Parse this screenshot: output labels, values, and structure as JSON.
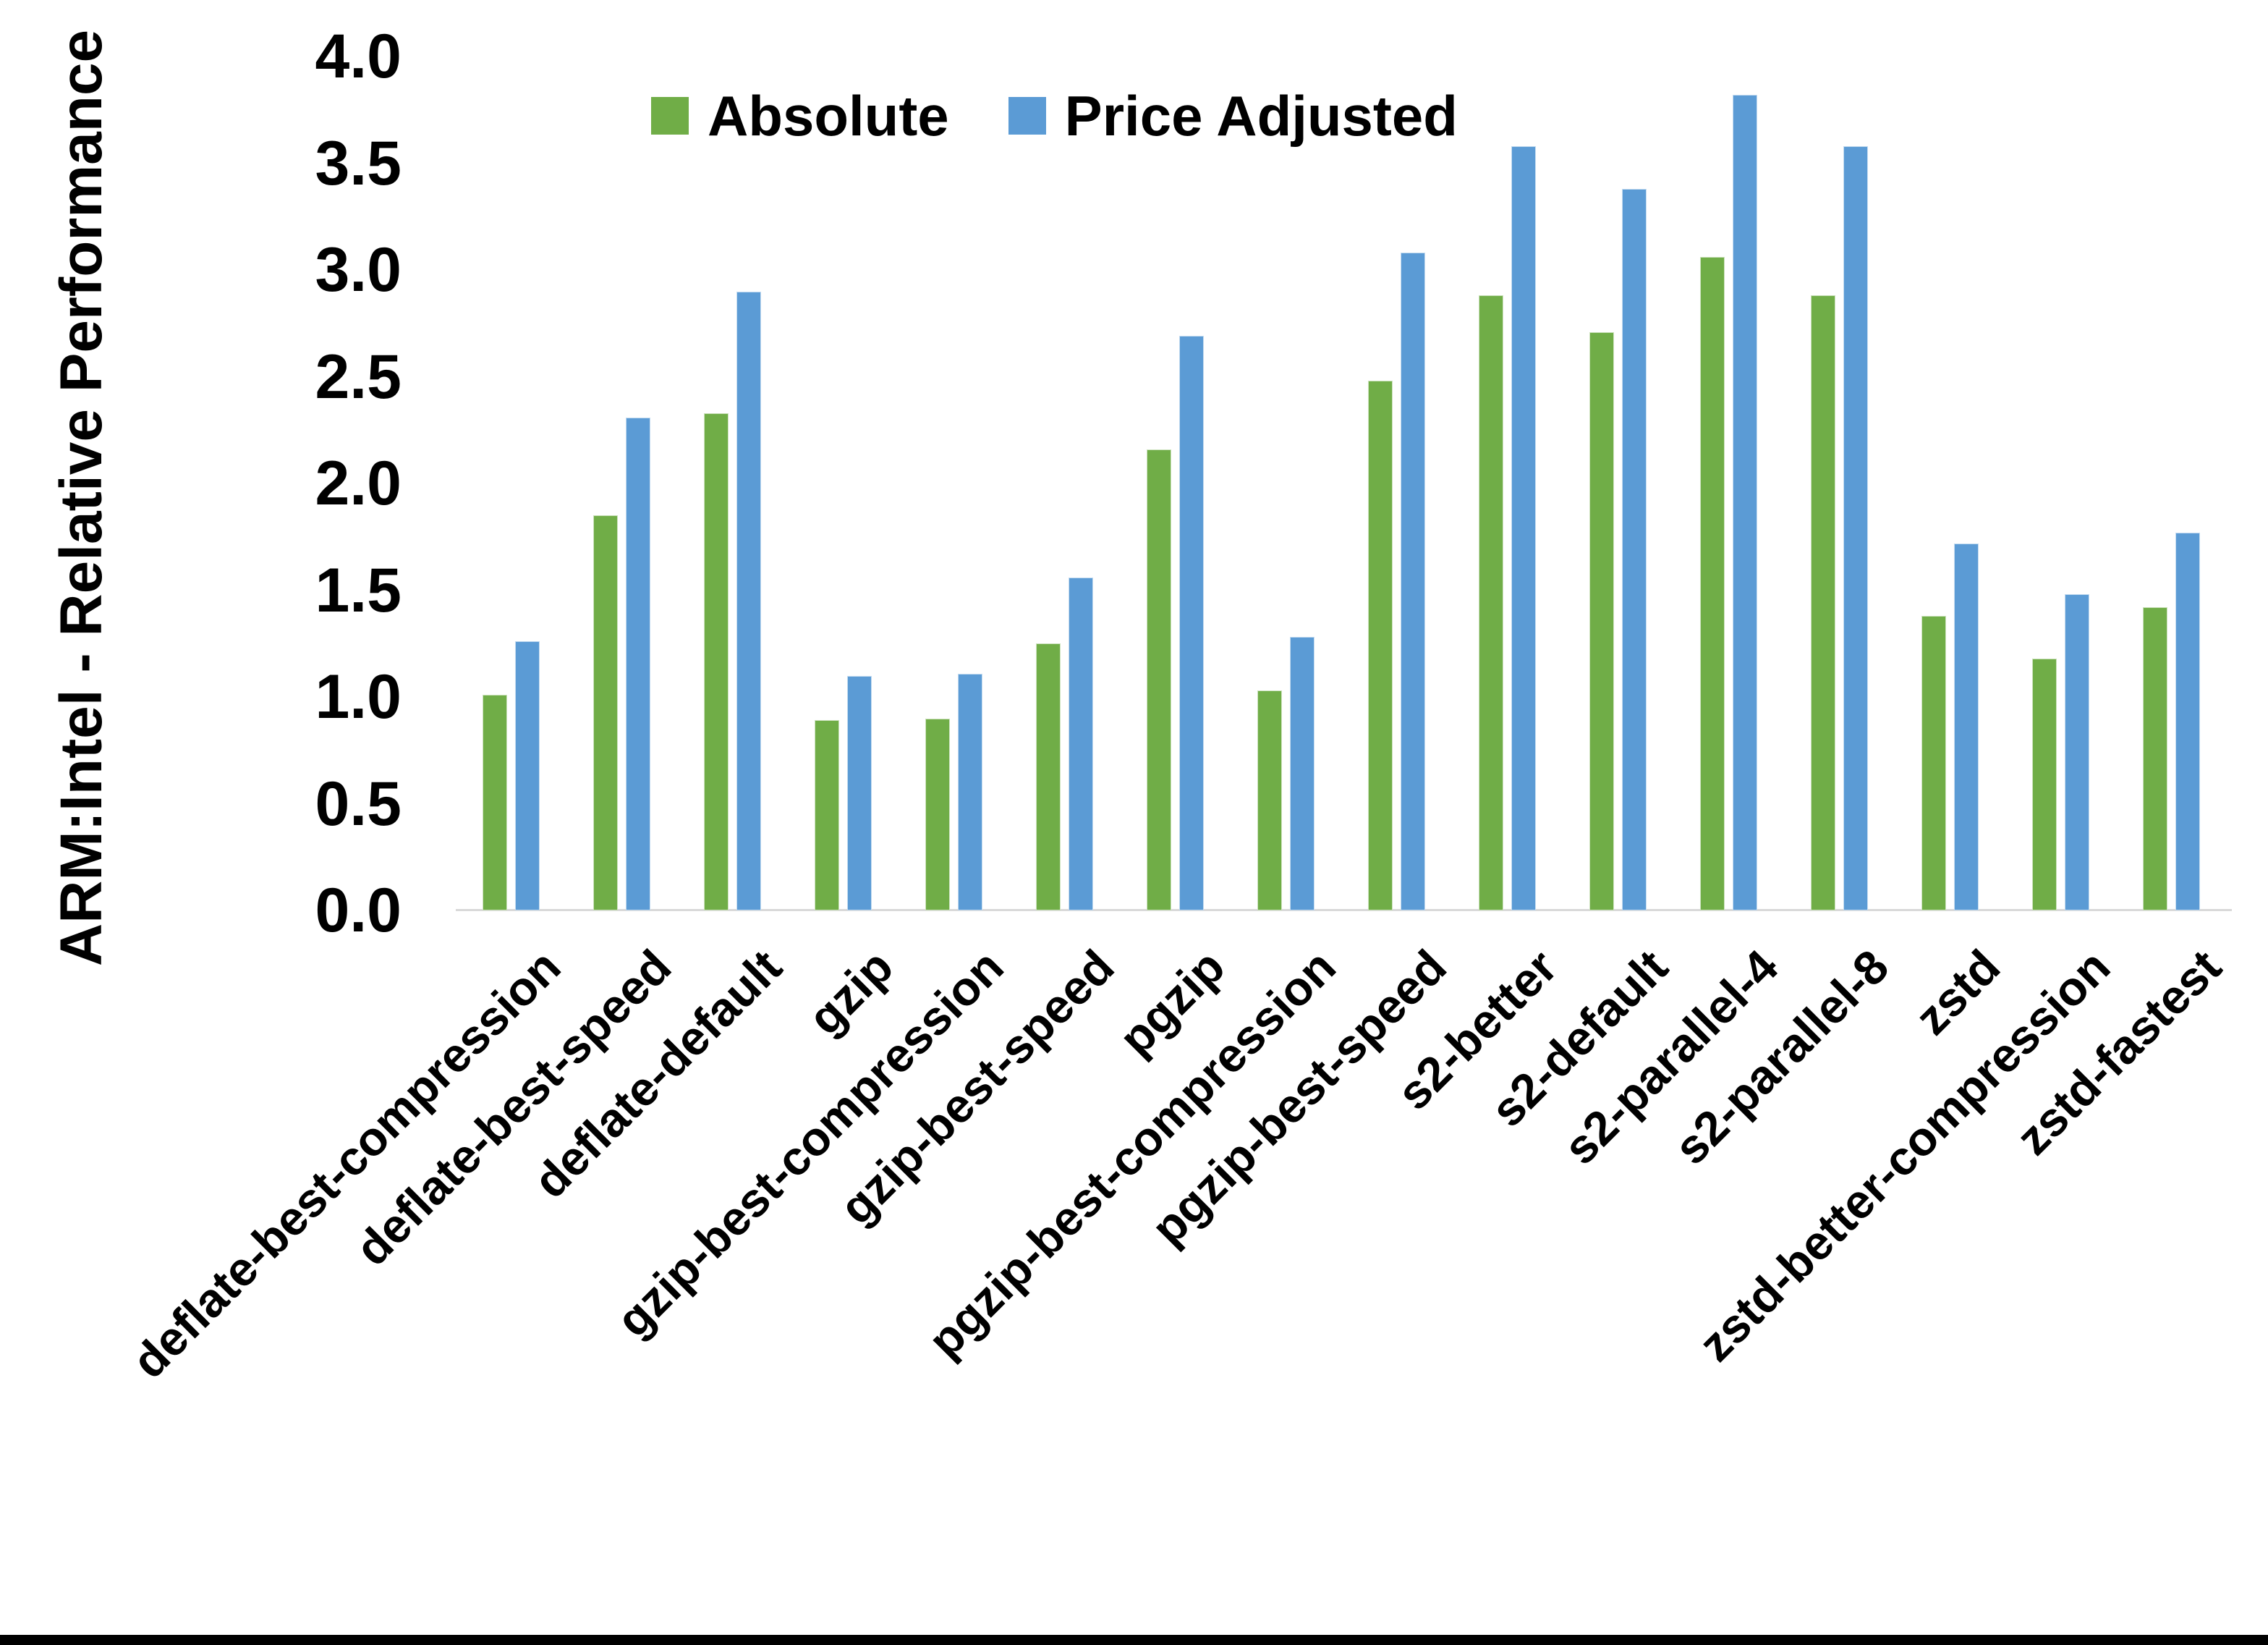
{
  "figure": {
    "background": "#ffffff",
    "bottom_border_color": "#000000"
  },
  "legend": {
    "items": [
      {
        "label": "Absolute",
        "color": "#70AD47"
      },
      {
        "label": "Price Adjusted",
        "color": "#5B9BD5"
      }
    ]
  },
  "chart_data": {
    "type": "bar",
    "title": "",
    "xlabel": "",
    "ylabel": "ARM:Intel - Relative Performance",
    "ylim": [
      0.0,
      4.0
    ],
    "ytick_labels": [
      "0.0",
      "0.5",
      "1.0",
      "1.5",
      "2.0",
      "2.5",
      "3.0",
      "3.5",
      "4.0"
    ],
    "grid": false,
    "legend_position": "top-center",
    "baseline_color": "#d9d9d9",
    "categories": [
      "deflate-best-compression",
      "deflate-best-speed",
      "deflate-default",
      "gzip",
      "gzip-best-compression",
      "gzip-best-speed",
      "pgzip",
      "pgzip-best-compression",
      "pgzip-best-speed",
      "s2-better",
      "s2-default",
      "s2-parallel-4",
      "s2-parallel-8",
      "zstd",
      "zstd-better-compression",
      "zstd-fastest"
    ],
    "series": [
      {
        "name": "Absolute",
        "color": "#70AD47",
        "values": [
          1.01,
          1.85,
          2.33,
          0.89,
          0.9,
          1.25,
          2.16,
          1.03,
          2.48,
          2.88,
          2.71,
          3.06,
          2.88,
          1.38,
          1.18,
          1.42
        ]
      },
      {
        "name": "Price Adjusted",
        "color": "#5B9BD5",
        "values": [
          1.26,
          2.31,
          2.9,
          1.1,
          1.11,
          1.56,
          2.69,
          1.28,
          3.08,
          3.58,
          3.38,
          3.82,
          3.58,
          1.72,
          1.48,
          1.77
        ]
      }
    ]
  }
}
